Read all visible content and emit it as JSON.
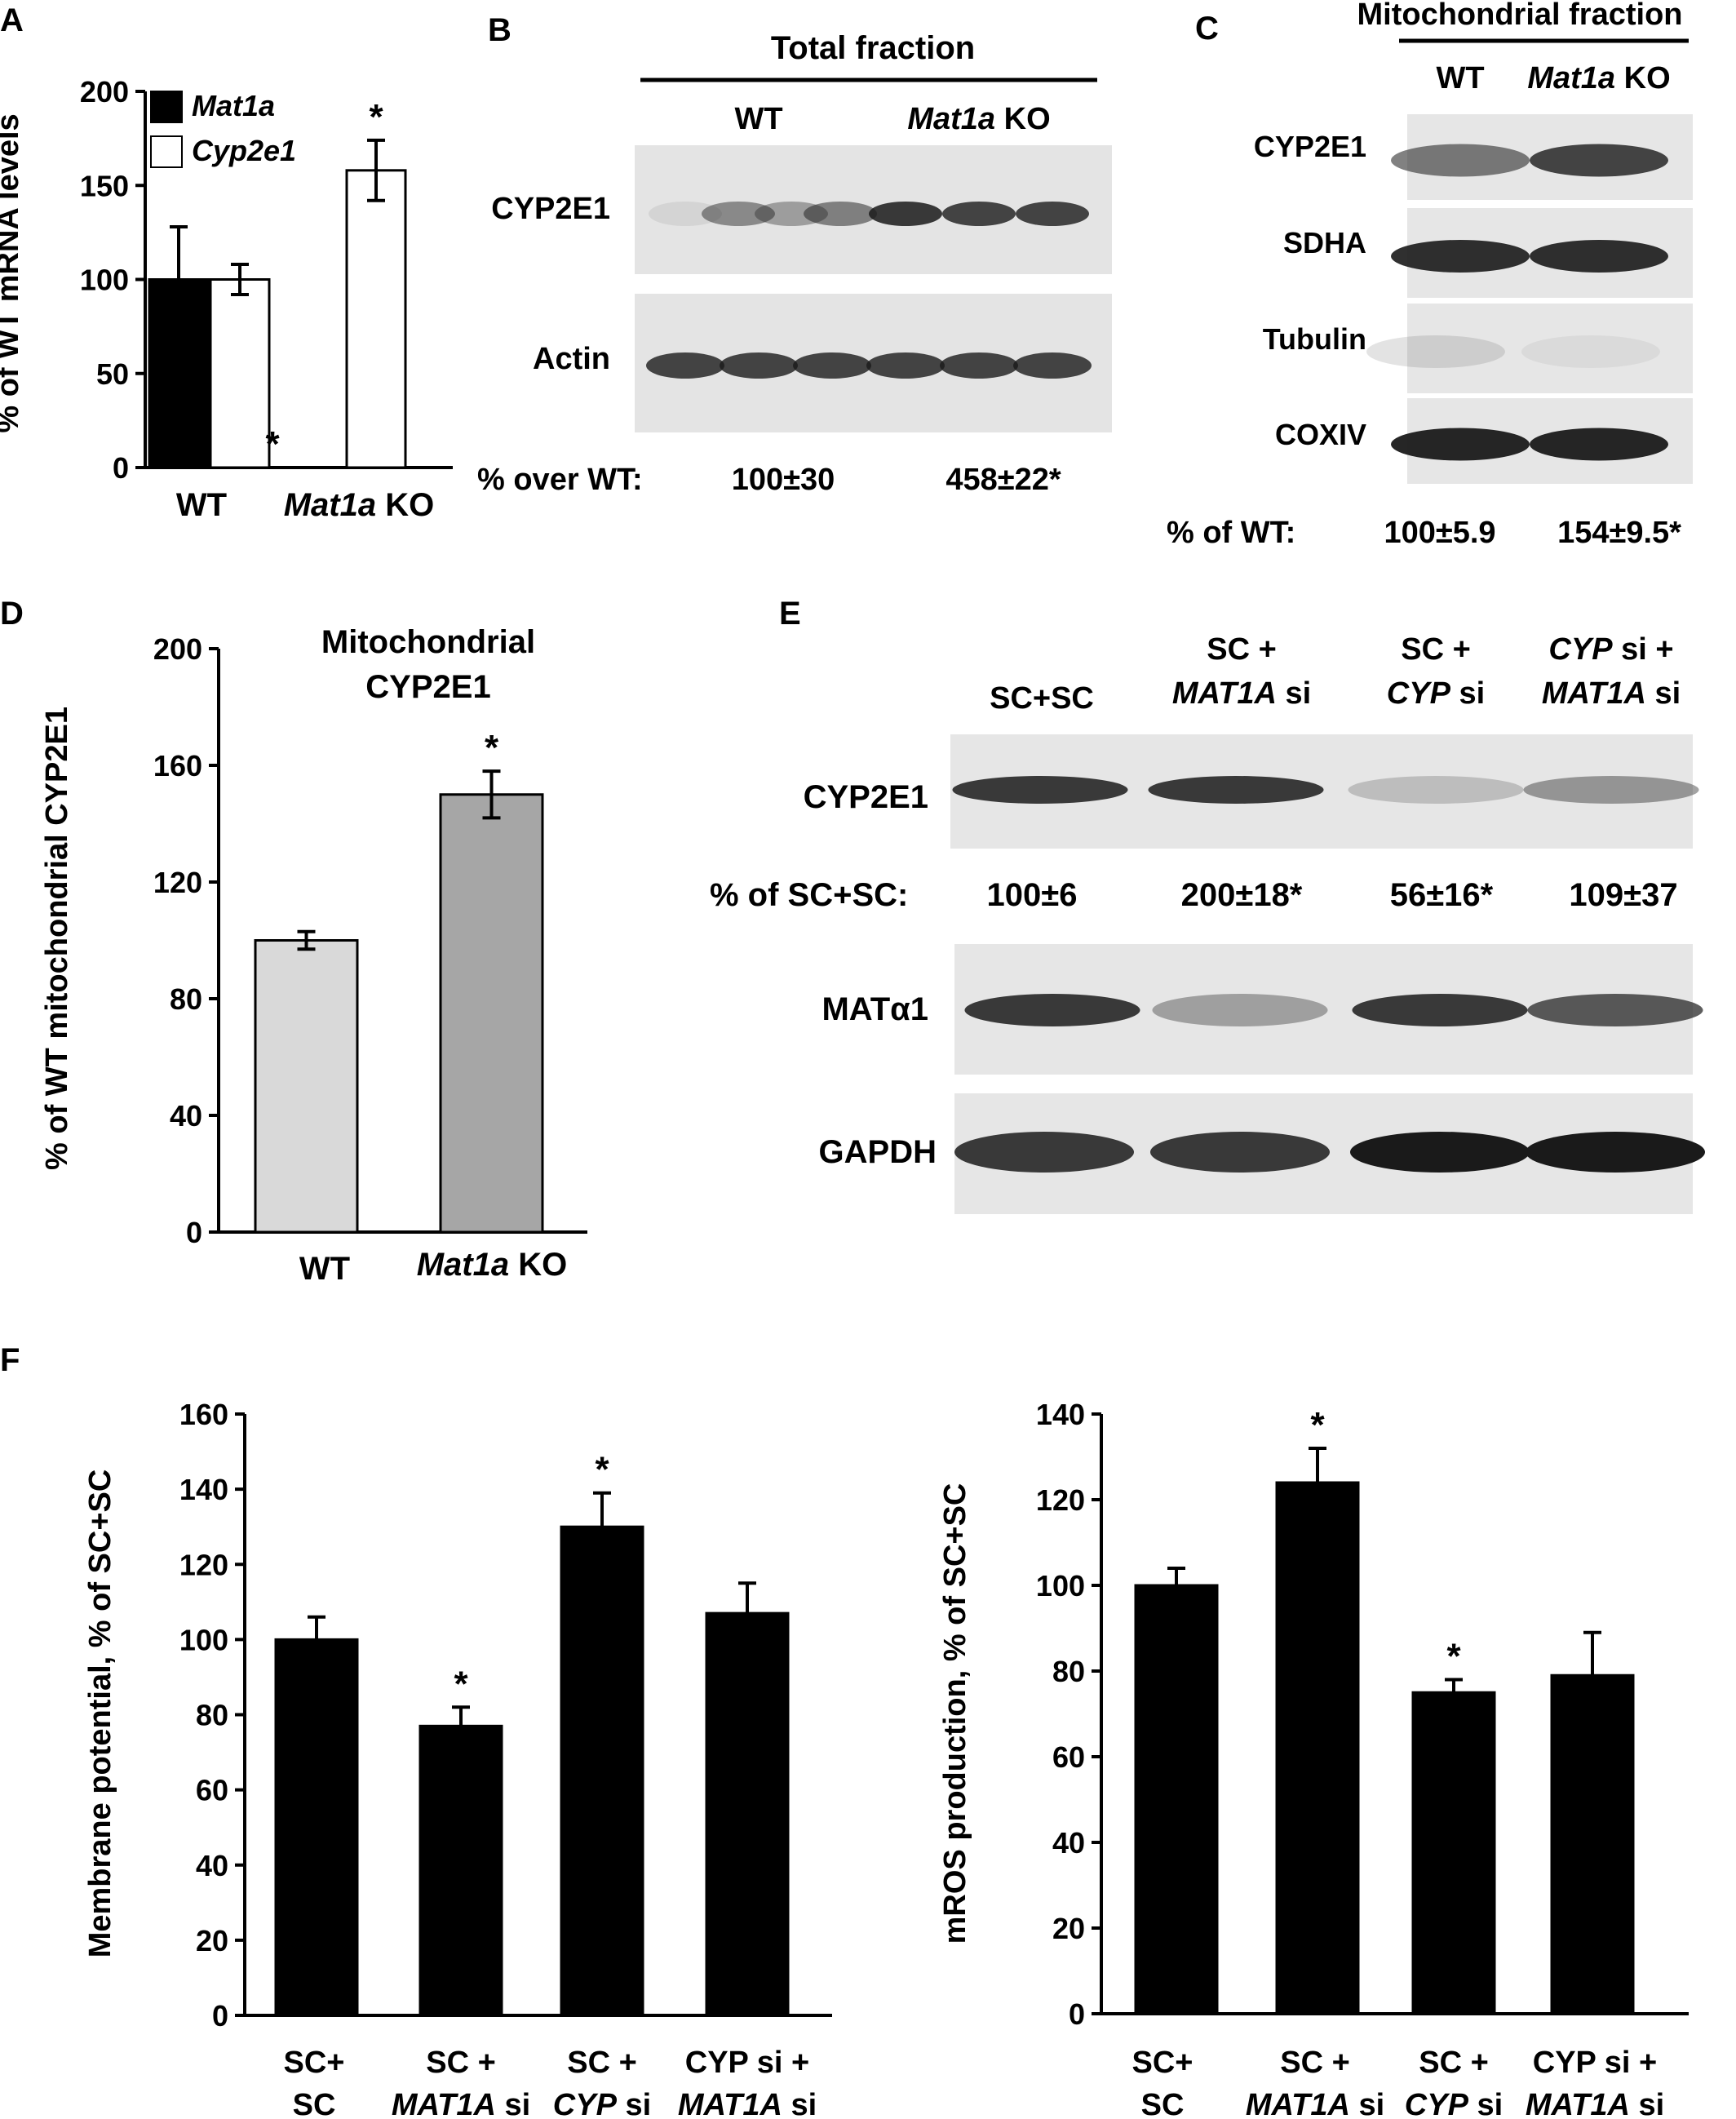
{
  "panels": {
    "A": {
      "letter": "A"
    },
    "B": {
      "letter": "B",
      "header": "Total fraction",
      "lanes": [
        "WT",
        "Mat1a KO"
      ],
      "rows": [
        "CYP2E1",
        "Actin"
      ],
      "quant_label": "% over WT:",
      "quant_values": [
        "100±30",
        "458±22*"
      ]
    },
    "C": {
      "letter": "C",
      "header": "Mitochondrial fraction",
      "lanes": [
        "WT",
        "Mat1a KO"
      ],
      "rows": [
        "CYP2E1",
        "SDHA",
        "Tubulin",
        "COXIV"
      ],
      "quant_label": "% of WT:",
      "quant_values": [
        "100±5.9",
        "154±9.5*"
      ]
    },
    "D": {
      "letter": "D"
    },
    "E": {
      "letter": "E",
      "lanes": [
        [
          "SC+SC"
        ],
        [
          "SC +",
          "MAT1A si"
        ],
        [
          "SC +",
          "CYP si"
        ],
        [
          "CYP si +",
          "MAT1A si"
        ]
      ],
      "rows": [
        "CYP2E1",
        "MATα1",
        "GAPDH"
      ],
      "quant_label": "% of SC+SC:",
      "quant_values": [
        "100±6",
        "200±18*",
        "56±16*",
        "109±37"
      ]
    },
    "F": {
      "letter": "F"
    }
  },
  "colors": {
    "black_bar": "#000000",
    "white_bar": "#ffffff",
    "light_gray_bar": "#d9d9d9",
    "dark_gray_bar": "#a6a6a6",
    "blot_bg": "#e6e6e6",
    "band": "#1a1a1a"
  },
  "chart_data": [
    {
      "id": "A",
      "type": "bar",
      "categories": [
        "WT",
        "Mat1a KO"
      ],
      "series": [
        {
          "name": "Mat1a",
          "values": [
            100,
            0
          ],
          "errors": [
            28,
            0
          ],
          "sig": [
            false,
            true
          ],
          "color": "#000000"
        },
        {
          "name": "Cyp2e1",
          "values": [
            100,
            158
          ],
          "errors": [
            8,
            16
          ],
          "sig": [
            false,
            true
          ],
          "color": "#ffffff"
        }
      ],
      "ylabel": "% of WT mRNA levels",
      "ylim": [
        0,
        200
      ],
      "yticks": [
        0,
        50,
        100,
        150,
        200
      ],
      "legend": "top-left"
    },
    {
      "id": "D",
      "type": "bar",
      "title": "Mitochondrial CYP2E1",
      "categories": [
        "WT",
        "Mat1a KO"
      ],
      "values": [
        100,
        150
      ],
      "errors": [
        3,
        8
      ],
      "sig": [
        false,
        true
      ],
      "colors": [
        "#d9d9d9",
        "#a6a6a6"
      ],
      "ylabel": "% of WT mitochondrial CYP2E1",
      "ylim": [
        0,
        200
      ],
      "yticks": [
        0,
        40,
        80,
        120,
        160,
        200
      ]
    },
    {
      "id": "F1",
      "type": "bar",
      "categories": [
        "SC+ SC",
        "SC + MAT1A si",
        "SC + CYP si",
        "CYP si + MAT1A si"
      ],
      "values": [
        100,
        77,
        130,
        107
      ],
      "errors": [
        6,
        5,
        9,
        8
      ],
      "sig": [
        false,
        true,
        true,
        false
      ],
      "ylabel": "Membrane potential, % of SC+SC",
      "ylim": [
        0,
        160
      ],
      "yticks": [
        0,
        20,
        40,
        60,
        80,
        100,
        120,
        140,
        160
      ]
    },
    {
      "id": "F2",
      "type": "bar",
      "categories": [
        "SC+ SC",
        "SC + MAT1A si",
        "SC + CYP si",
        "CYP si + MAT1A si"
      ],
      "values": [
        100,
        124,
        75,
        79
      ],
      "errors": [
        4,
        8,
        3,
        10
      ],
      "sig": [
        false,
        true,
        true,
        false
      ],
      "ylabel": "mROS production, % of SC+SC",
      "ylim": [
        0,
        140
      ],
      "yticks": [
        0,
        20,
        40,
        60,
        80,
        100,
        120,
        140
      ]
    }
  ]
}
